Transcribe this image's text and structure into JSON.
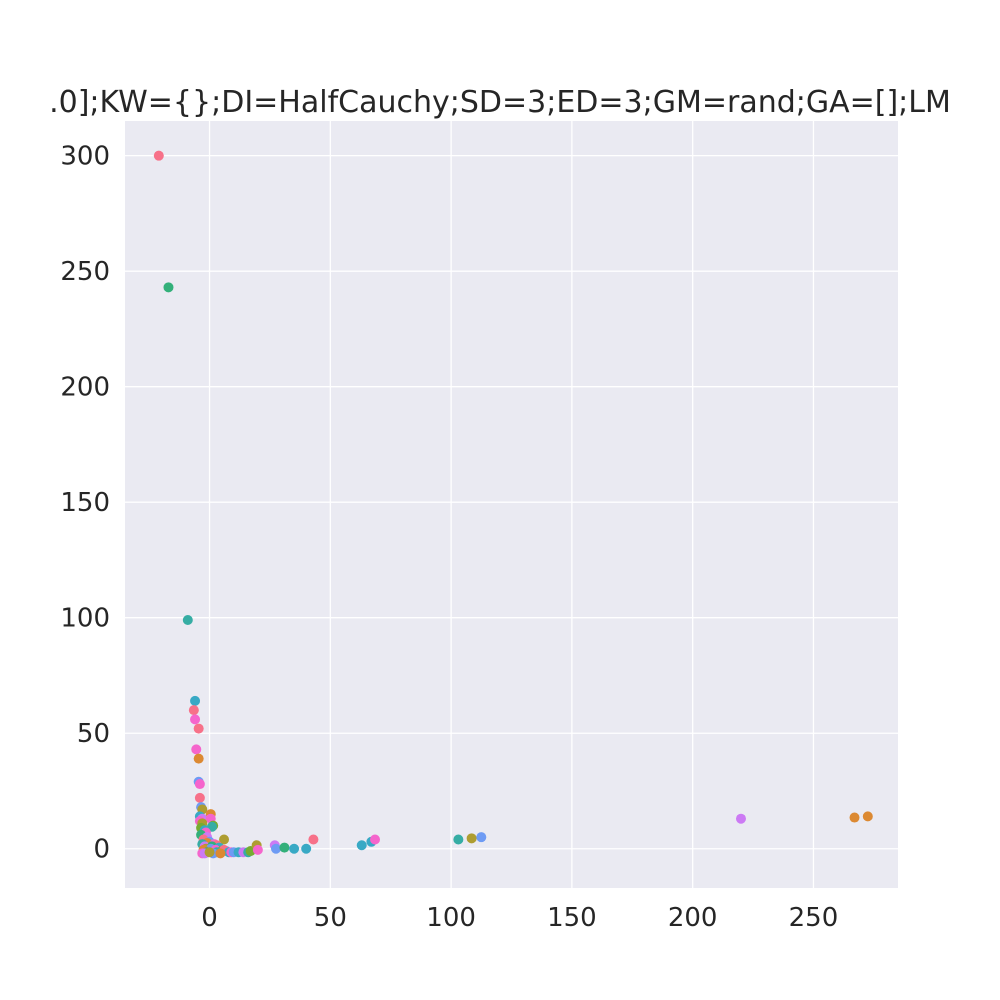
{
  "chart_data": {
    "type": "scatter",
    "title": ".0];KW={};DI=HalfCauchy;SD=3;ED=3;GM=rand;GA=[];LM",
    "xlabel": "",
    "ylabel": "",
    "xlim": [
      -35,
      285
    ],
    "ylim": [
      -17,
      315
    ],
    "grid": true,
    "x_ticks": [
      0,
      50,
      100,
      150,
      200,
      250
    ],
    "y_ticks": [
      0,
      50,
      100,
      150,
      200,
      250,
      300
    ],
    "x_tick_labels": [
      "0",
      "50",
      "100",
      "150",
      "200",
      "250"
    ],
    "y_tick_labels": [
      "0",
      "50",
      "100",
      "150",
      "200",
      "250",
      "300"
    ],
    "colors": {
      "background": "#eaeaf2",
      "grid": "#ffffff",
      "text": "#262626",
      "palette": [
        "#f77189",
        "#dc8932",
        "#ae9d31",
        "#77ab31",
        "#33b07a",
        "#36ada4",
        "#38a9c5",
        "#6e9bf4",
        "#cc7af4",
        "#f565cc"
      ]
    },
    "points": [
      {
        "x": -21,
        "y": 300,
        "c": 0
      },
      {
        "x": -17,
        "y": 243,
        "c": 4
      },
      {
        "x": -9,
        "y": 99,
        "c": 5
      },
      {
        "x": -6,
        "y": 64,
        "c": 6
      },
      {
        "x": -6.5,
        "y": 60,
        "c": 0
      },
      {
        "x": -6,
        "y": 56,
        "c": 9
      },
      {
        "x": -4.5,
        "y": 52,
        "c": 0
      },
      {
        "x": -5.5,
        "y": 43,
        "c": 9
      },
      {
        "x": -4.5,
        "y": 39,
        "c": 1
      },
      {
        "x": -4.5,
        "y": 29,
        "c": 7
      },
      {
        "x": -4,
        "y": 28,
        "c": 9
      },
      {
        "x": -4,
        "y": 22,
        "c": 0
      },
      {
        "x": -3.5,
        "y": 18,
        "c": 7
      },
      {
        "x": -3,
        "y": 17,
        "c": 2
      },
      {
        "x": 0.5,
        "y": 15,
        "c": 1
      },
      {
        "x": -4,
        "y": 14,
        "c": 6
      },
      {
        "x": -3,
        "y": 13,
        "c": 8
      },
      {
        "x": 0.5,
        "y": 13,
        "c": 9
      },
      {
        "x": -4,
        "y": 12,
        "c": 9
      },
      {
        "x": -3,
        "y": 11,
        "c": 2
      },
      {
        "x": 1.5,
        "y": 10,
        "c": 3
      },
      {
        "x": 1,
        "y": 9.5,
        "c": 5
      },
      {
        "x": -3.5,
        "y": 9,
        "c": 3
      },
      {
        "x": -2,
        "y": 8,
        "c": 6
      },
      {
        "x": -1.5,
        "y": 7,
        "c": 9
      },
      {
        "x": -3.5,
        "y": 6,
        "c": 4
      },
      {
        "x": -1,
        "y": 5,
        "c": 8
      },
      {
        "x": 6,
        "y": 4,
        "c": 2
      },
      {
        "x": -2.5,
        "y": 4,
        "c": 0
      },
      {
        "x": 0,
        "y": 3,
        "c": 7
      },
      {
        "x": -1,
        "y": 2.5,
        "c": 1
      },
      {
        "x": 2,
        "y": 2,
        "c": 9
      },
      {
        "x": -3,
        "y": 2,
        "c": 5
      },
      {
        "x": 3,
        "y": 1.5,
        "c": 0
      },
      {
        "x": -2,
        "y": 1,
        "c": 8
      },
      {
        "x": 1,
        "y": 1,
        "c": 4
      },
      {
        "x": 4,
        "y": 0.5,
        "c": 6
      },
      {
        "x": -1.5,
        "y": 0,
        "c": 2
      },
      {
        "x": 0.5,
        "y": 0,
        "c": 7
      },
      {
        "x": 2.5,
        "y": -0.5,
        "c": 9
      },
      {
        "x": -2.5,
        "y": -0.5,
        "c": 1
      },
      {
        "x": 5,
        "y": -1,
        "c": 3
      },
      {
        "x": 7,
        "y": -1,
        "c": 8
      },
      {
        "x": 6,
        "y": -0.5,
        "c": 0
      },
      {
        "x": 8,
        "y": -1.5,
        "c": 6
      },
      {
        "x": 9,
        "y": -1.5,
        "c": 9
      },
      {
        "x": 3,
        "y": -1.5,
        "c": 5
      },
      {
        "x": -1,
        "y": -1.5,
        "c": 4
      },
      {
        "x": 1.5,
        "y": -2,
        "c": 7
      },
      {
        "x": -3,
        "y": -2,
        "c": 9
      },
      {
        "x": -2,
        "y": -2,
        "c": 8
      },
      {
        "x": 0,
        "y": -1.5,
        "c": 2
      },
      {
        "x": 4.5,
        "y": -2,
        "c": 1
      },
      {
        "x": 10,
        "y": -1.5,
        "c": 7
      },
      {
        "x": 12,
        "y": -1.5,
        "c": 6
      },
      {
        "x": 14,
        "y": -1.5,
        "c": 8
      },
      {
        "x": 16,
        "y": -1.5,
        "c": 5
      },
      {
        "x": 17,
        "y": -1,
        "c": 3
      },
      {
        "x": 19.5,
        "y": 1.5,
        "c": 2
      },
      {
        "x": 20,
        "y": -0.5,
        "c": 9
      },
      {
        "x": 27,
        "y": 1.5,
        "c": 8
      },
      {
        "x": 27.5,
        "y": 0,
        "c": 7
      },
      {
        "x": 31,
        "y": 0.5,
        "c": 4
      },
      {
        "x": 35,
        "y": 0,
        "c": 6
      },
      {
        "x": 40,
        "y": 0,
        "c": 6
      },
      {
        "x": 43,
        "y": 4,
        "c": 0
      },
      {
        "x": 63,
        "y": 1.5,
        "c": 6
      },
      {
        "x": 67,
        "y": 3,
        "c": 6
      },
      {
        "x": 68.5,
        "y": 4,
        "c": 9
      },
      {
        "x": 103,
        "y": 4,
        "c": 5
      },
      {
        "x": 108.5,
        "y": 4.5,
        "c": 2
      },
      {
        "x": 112.5,
        "y": 5,
        "c": 7
      },
      {
        "x": 220,
        "y": 13,
        "c": 8
      },
      {
        "x": 267,
        "y": 13.5,
        "c": 1
      },
      {
        "x": 272.5,
        "y": 14,
        "c": 1
      }
    ]
  }
}
